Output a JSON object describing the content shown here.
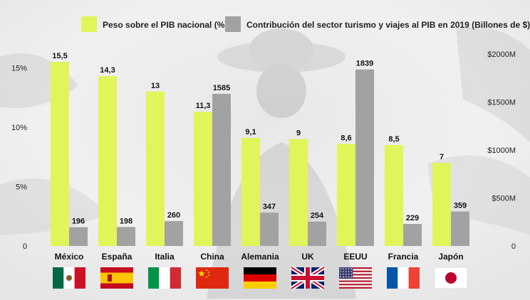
{
  "chart_data": {
    "type": "bar",
    "categories": [
      "México",
      "España",
      "Italia",
      "China",
      "Alemania",
      "UK",
      "EEUU",
      "Francia",
      "Japón"
    ],
    "series": [
      {
        "name": "Peso sobre el PIB nacional (%)",
        "axis": "left",
        "color": "#e1f55a",
        "values": [
          15.5,
          14.3,
          13,
          11.3,
          9.1,
          9,
          8.6,
          8.5,
          7
        ],
        "labels": [
          "15,5",
          "14,3",
          "13",
          "11,3",
          "9,1",
          "9",
          "8,6",
          "8,5",
          "7"
        ]
      },
      {
        "name": "Contribución del sector turismo y viajes al PIB en 2019 (Billones de $)",
        "axis": "right",
        "color": "#a2a2a2",
        "values": [
          196,
          198,
          260,
          1585,
          347,
          254,
          1839,
          229,
          359
        ],
        "labels": [
          "196",
          "198",
          "260",
          "1585",
          "347",
          "254",
          "1839",
          "229",
          "359"
        ]
      }
    ],
    "y_left": {
      "ylim": [
        0,
        15.5
      ],
      "ticks": [
        0,
        5,
        10,
        15
      ],
      "tick_labels": [
        "0",
        "5%",
        "10%",
        "15%"
      ]
    },
    "y_right": {
      "ylim": [
        0,
        2000
      ],
      "ticks": [
        0,
        500,
        1000,
        1500,
        2000
      ],
      "tick_labels": [
        "0",
        "$500M",
        "$1000M",
        "$1500M",
        "$2000M"
      ]
    },
    "legend_position": "top",
    "grid": false,
    "flags": [
      "mexico-flag",
      "spain-flag",
      "italy-flag",
      "china-flag",
      "germany-flag",
      "uk-flag",
      "usa-flag",
      "france-flag",
      "japan-flag"
    ]
  }
}
